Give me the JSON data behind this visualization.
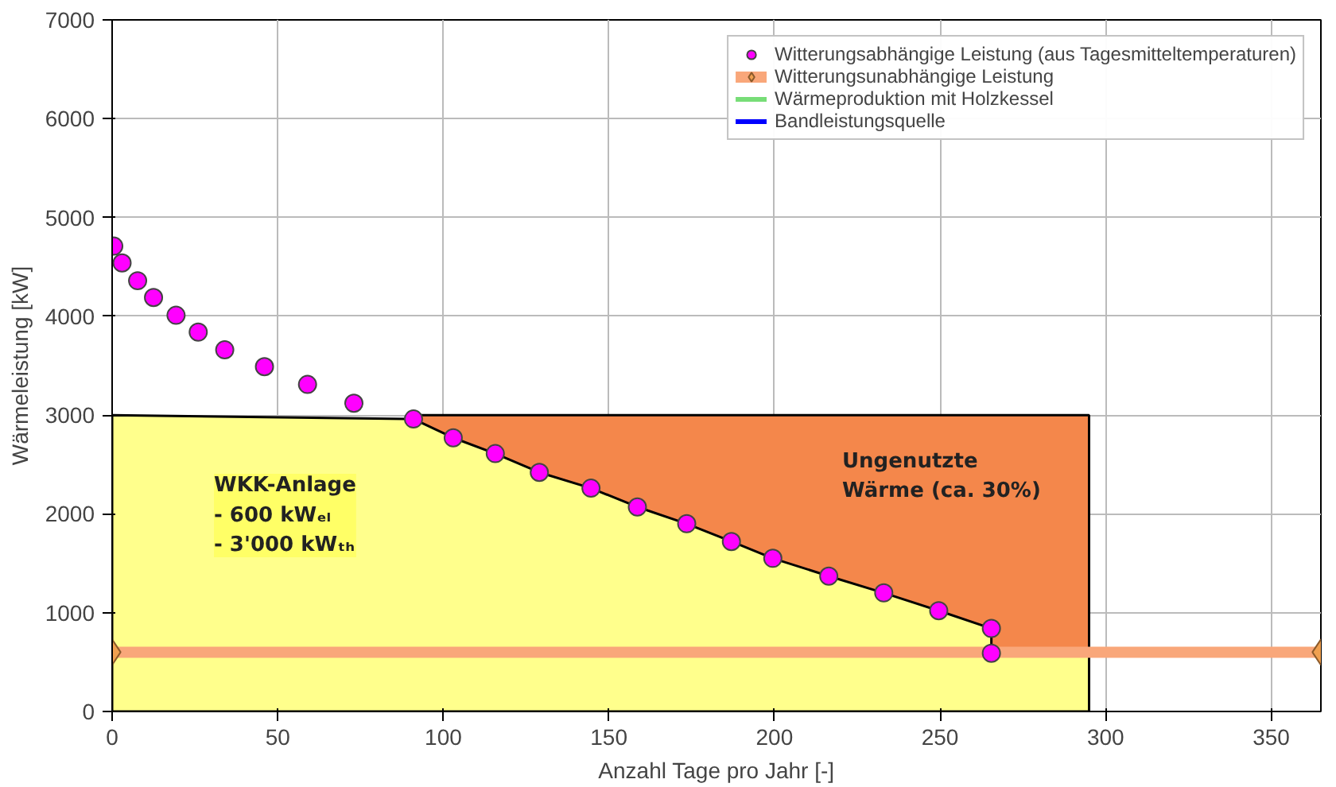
{
  "chart_data": {
    "type": "scatter",
    "xlabel": "Anzahl Tage pro Jahr [-]",
    "ylabel": "Wärmeleistung [kW]",
    "xlim": [
      0,
      365
    ],
    "ylim": [
      0,
      7000
    ],
    "xticks": [
      0,
      50,
      100,
      150,
      200,
      250,
      300,
      350
    ],
    "yticks": [
      0,
      1000,
      2000,
      3000,
      4000,
      5000,
      6000,
      7000
    ],
    "grid": true,
    "legend": "top right",
    "series": [
      {
        "type": "area",
        "color": "#f4874b",
        "x": [
          91,
          295
        ],
        "values": [
          3000,
          3000
        ]
      },
      {
        "type": "area",
        "color": "#ffff8c",
        "x": [
          0,
          91,
          103,
          115.7,
          129,
          144.6,
          158.6,
          173.5,
          187,
          199.5,
          216.4,
          233,
          249.6,
          265.5,
          265.5,
          295
        ],
        "values": [
          3000,
          2960,
          2770,
          2610,
          2420,
          2260,
          2070,
          1900,
          1720,
          1550,
          1370,
          1200,
          1020,
          840,
          590,
          590
        ]
      },
      {
        "name": "Witterungsabhängige Leistung (aus Tagesmitteltemperaturen)",
        "marker": "circle",
        "color": "#ff00ff",
        "x": [
          0.5,
          3,
          7.7,
          12.5,
          19.3,
          26,
          34,
          46,
          59,
          73,
          91,
          103,
          115.7,
          129,
          144.6,
          158.6,
          173.5,
          187,
          199.5,
          216.4,
          233,
          249.6,
          265.5,
          265.5
        ],
        "values": [
          4710,
          4540,
          4360,
          4190,
          4010,
          3840,
          3660,
          3490,
          3310,
          3120,
          2960,
          2770,
          2610,
          2420,
          2260,
          2070,
          1900,
          1720,
          1550,
          1370,
          1200,
          1020,
          840,
          590
        ]
      },
      {
        "name": "Witterungsunabhängige Leistung",
        "type": "line",
        "marker": "diamond",
        "color": "#f9a77a",
        "x": [
          0,
          365
        ],
        "values": [
          600,
          600
        ]
      },
      {
        "name": "Wärmeproduktion mit Holzkessel",
        "type": "line",
        "color": "#77dd77"
      },
      {
        "name": "Bandleistungsquelle",
        "type": "line",
        "color": "#0000ff"
      }
    ],
    "annotations": [
      "Ungenutzte\nWärme (ca. 30%)",
      "WKK-Anlage\n- 600 kWₑₗ\n- 3'000 kWₜₕ"
    ]
  }
}
